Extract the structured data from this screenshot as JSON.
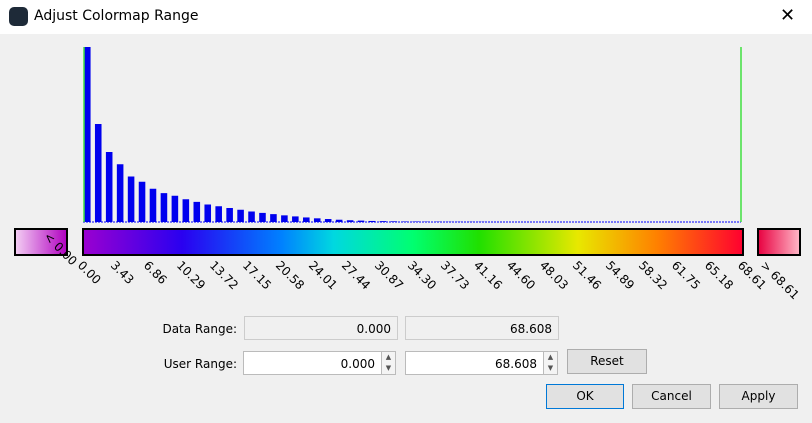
{
  "window": {
    "title": "Adjust Colormap Range"
  },
  "histogram": {
    "counts": [
      1000,
      560,
      400,
      330,
      260,
      230,
      190,
      165,
      150,
      130,
      115,
      100,
      90,
      80,
      70,
      60,
      52,
      45,
      38,
      32,
      26,
      21,
      17,
      13,
      10,
      8,
      6,
      5,
      4,
      3,
      3,
      2,
      2,
      1,
      1,
      1,
      1,
      0,
      0,
      0,
      0,
      0,
      0,
      0,
      0,
      0,
      0,
      0,
      0,
      0,
      0,
      0,
      0,
      0,
      0,
      0,
      0,
      0,
      0,
      0
    ]
  },
  "colorbar": {
    "under_label": "< 0.00",
    "over_label": "> 68.61",
    "ticks": [
      "0.00",
      "3.43",
      "6.86",
      "10.29",
      "13.72",
      "17.15",
      "20.58",
      "24.01",
      "27.44",
      "30.87",
      "34.30",
      "37.73",
      "41.16",
      "44.60",
      "48.03",
      "51.46",
      "54.89",
      "58.32",
      "61.75",
      "65.18",
      "68.61"
    ]
  },
  "form": {
    "data_range": {
      "label": "Data Range:",
      "min": "0.000",
      "max": "68.608"
    },
    "user_range": {
      "label": "User Range:",
      "min": "0.000",
      "max": "68.608"
    }
  },
  "buttons": {
    "reset": "Reset",
    "ok": "OK",
    "cancel": "Cancel",
    "apply": "Apply"
  }
}
